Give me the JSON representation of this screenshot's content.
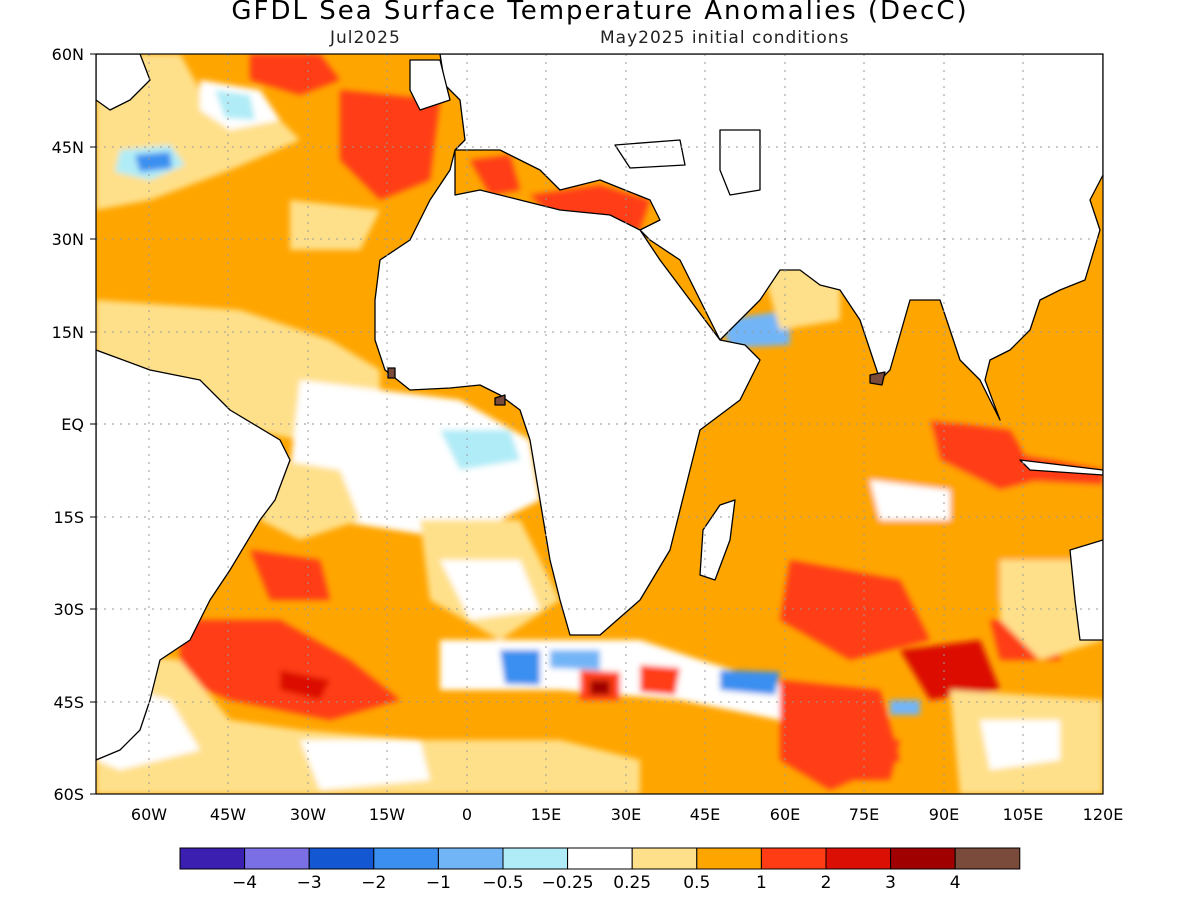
{
  "title": "GFDL Sea Surface Temperature Anomalies (DecC)",
  "subtitle_left": "Jul2025",
  "subtitle_right": "May2025 initial conditions",
  "map": {
    "lon_range": [
      -70,
      120
    ],
    "lat_range": [
      -60,
      60
    ],
    "lat_ticks": [
      "60N",
      "45N",
      "30N",
      "15N",
      "EQ",
      "15S",
      "30S",
      "45S",
      "60S"
    ],
    "lon_ticks": [
      "60W",
      "45W",
      "30W",
      "15W",
      "0",
      "15E",
      "30E",
      "45E",
      "60E",
      "75E",
      "90E",
      "105E",
      "120E"
    ],
    "gridlines": "dotted",
    "land_color": "#ffffff",
    "coastline_color": "#000000"
  },
  "colorbar": {
    "colors": [
      "#3b1fb0",
      "#7b6fe6",
      "#1457d2",
      "#3a8ff0",
      "#72b5f7",
      "#b0ecf7",
      "#ffffff",
      "#ffe08a",
      "#ffa500",
      "#ff3c14",
      "#dc0f05",
      "#a00000",
      "#7a4a3a"
    ],
    "labels": [
      "-4",
      "-3",
      "-2",
      "-1",
      "-0.5",
      "-0.25",
      "0.25",
      "0.5",
      "1",
      "2",
      "3",
      "4"
    ]
  }
}
